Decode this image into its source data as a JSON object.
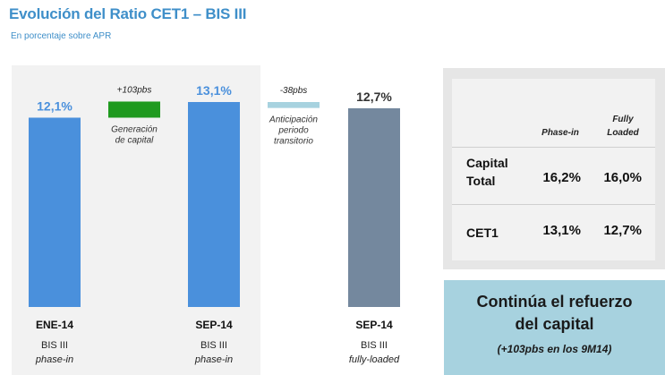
{
  "header": {
    "title": "Evolución del Ratio CET1 – BIS III",
    "subtitle": "En porcentaje sobre APR"
  },
  "colors": {
    "title": "#3f8fc9",
    "bar_blue": "#4a90dc",
    "bar_green": "#1f9a1f",
    "bar_lightblue": "#a7d2df",
    "bar_slate": "#74889e"
  },
  "chart_data": {
    "type": "bar",
    "subtype": "waterfall",
    "title": "Evolución del Ratio CET1 – BIS III",
    "ylabel": "En porcentaje sobre APR",
    "unit": "%",
    "ylim": [
      0,
      14
    ],
    "categories": [
      "ENE-14",
      "Generación de capital",
      "SEP-14",
      "Anticipación periodo transitorio",
      "SEP-14"
    ],
    "bars": [
      {
        "label": "12,1%",
        "value": 12.1,
        "base": 0,
        "color": "#4a90dc",
        "kind": "total",
        "category": "ENE-14",
        "sublabel": [
          "BIS III",
          "phase-in"
        ]
      },
      {
        "label": "+103pbs",
        "value": 1.03,
        "base": 12.1,
        "color": "#1f9a1f",
        "kind": "delta",
        "description": [
          "Generación",
          "de capital"
        ]
      },
      {
        "label": "13,1%",
        "value": 13.1,
        "base": 0,
        "color": "#4a90dc",
        "kind": "total",
        "category": "SEP-14",
        "sublabel": [
          "BIS III",
          "phase-in"
        ]
      },
      {
        "label": "-38pbs",
        "value": -0.38,
        "base": 13.1,
        "color": "#a7d2df",
        "kind": "delta",
        "description": [
          "Anticipación",
          "periodo",
          "transitorio"
        ]
      },
      {
        "label": "12,7%",
        "value": 12.7,
        "base": 0,
        "color": "#74889e",
        "kind": "total",
        "category": "SEP-14",
        "sublabel": [
          "BIS III",
          "fully-loaded"
        ]
      }
    ]
  },
  "table": {
    "columns": [
      "Phase-in",
      "Fully Loaded"
    ],
    "column_lines": [
      [
        "Phase-in"
      ],
      [
        "Fully",
        "Loaded"
      ]
    ],
    "rows": [
      {
        "label": "Capital Total",
        "label_lines": [
          "Capital",
          "Total"
        ],
        "values": [
          "16,2%",
          "16,0%"
        ]
      },
      {
        "label": "CET1",
        "label_lines": [
          "CET1"
        ],
        "values": [
          "13,1%",
          "12,7%"
        ]
      }
    ]
  },
  "callout": {
    "main_lines": [
      "Continúa el refuerzo",
      "del capital"
    ],
    "sub": "(+103pbs en los 9M14)"
  }
}
